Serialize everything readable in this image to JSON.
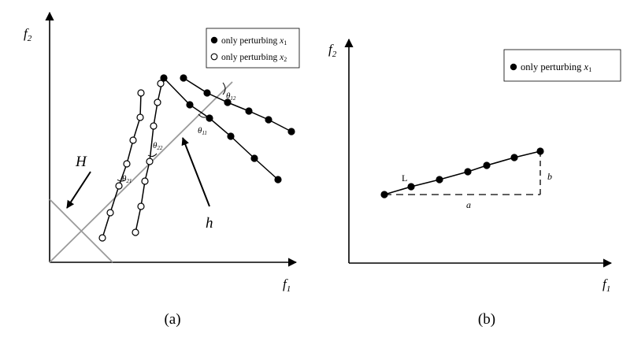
{
  "panel_a": {
    "y_axis_label": "f",
    "y_axis_sub": "2",
    "x_axis_label": "f",
    "x_axis_sub": "1",
    "caption": "(a)",
    "legend": {
      "filled_label": "only perturbing ",
      "filled_var": "x",
      "filled_sub": "1",
      "open_label": "only perturbing ",
      "open_var": "x",
      "open_sub": "2"
    },
    "labels": {
      "H": "H",
      "h": "h",
      "theta": "θ",
      "theta12_sub": "12",
      "theta11_sub": "11",
      "theta22_sub": "22",
      "theta21_sub": "21"
    }
  },
  "panel_b": {
    "y_axis_label": "f",
    "y_axis_sub": "2",
    "x_axis_label": "f",
    "x_axis_sub": "1",
    "caption": "(b)",
    "legend": {
      "filled_label": "only perturbing ",
      "filled_var": "x",
      "filled_sub": "1"
    },
    "labels": {
      "L": "L",
      "a": "a",
      "b": "b"
    }
  },
  "colors": {
    "ink": "#000000",
    "guide_line": "#9a9a9a",
    "open_marker_fill": "#ffffff"
  }
}
